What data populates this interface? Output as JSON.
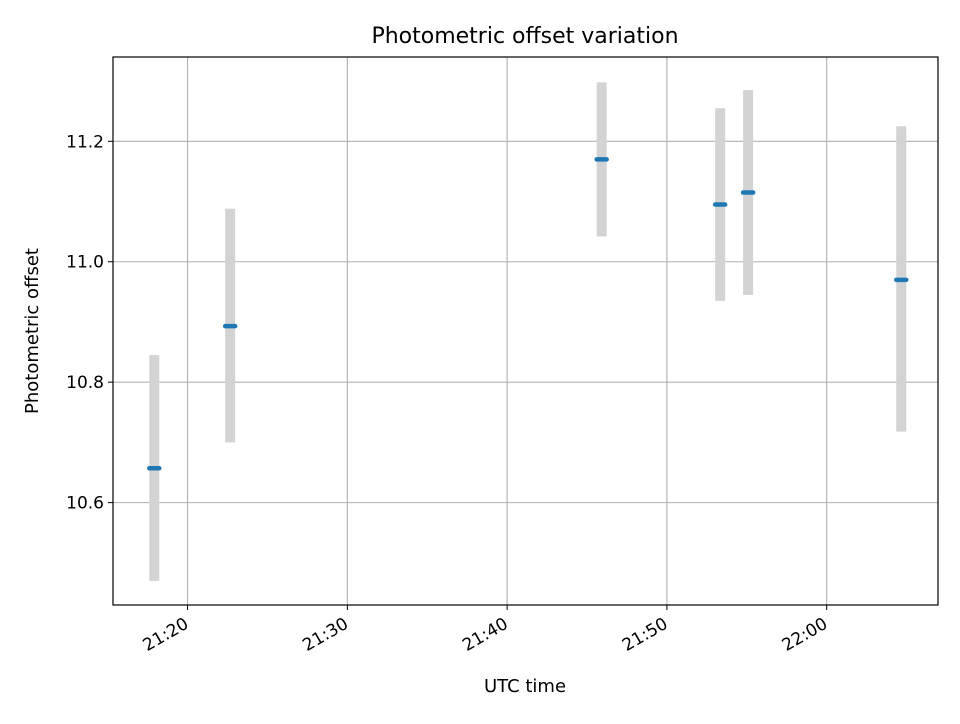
{
  "chart_data": {
    "type": "scatter",
    "title": "Photometric offset variation",
    "xlabel": "UTC time",
    "ylabel": "Photometric offset",
    "x_tick_labels": [
      "21:20",
      "21:30",
      "21:40",
      "21:50",
      "22:00"
    ],
    "y_tick_labels": [
      "10.6",
      "10.8",
      "11.0",
      "11.2"
    ],
    "x_ticks": [
      "21:20",
      "21:30",
      "21:40",
      "21:50",
      "22:00"
    ],
    "y_ticks": [
      10.6,
      10.8,
      11.0,
      11.2
    ],
    "xlim": [
      "21:15:20",
      "22:06:58"
    ],
    "ylim": [
      10.43,
      11.34
    ],
    "grid": true,
    "series": [
      {
        "marker": "dot",
        "x": [
          "21:17:55",
          "21:22:40",
          "21:45:55",
          "21:53:20",
          "21:55:05",
          "22:04:40"
        ],
        "y": [
          10.657,
          10.893,
          11.17,
          11.095,
          11.115,
          10.97
        ],
        "yerr_low": [
          10.47,
          10.7,
          11.042,
          10.935,
          10.945,
          10.718
        ],
        "yerr_high": [
          10.845,
          11.088,
          11.298,
          11.255,
          11.285,
          11.225
        ]
      }
    ],
    "colors": {
      "point": "#1f77b4",
      "errorbar": "#d3d3d3",
      "grid": "#b0b0b0",
      "axes": "#000000"
    }
  }
}
